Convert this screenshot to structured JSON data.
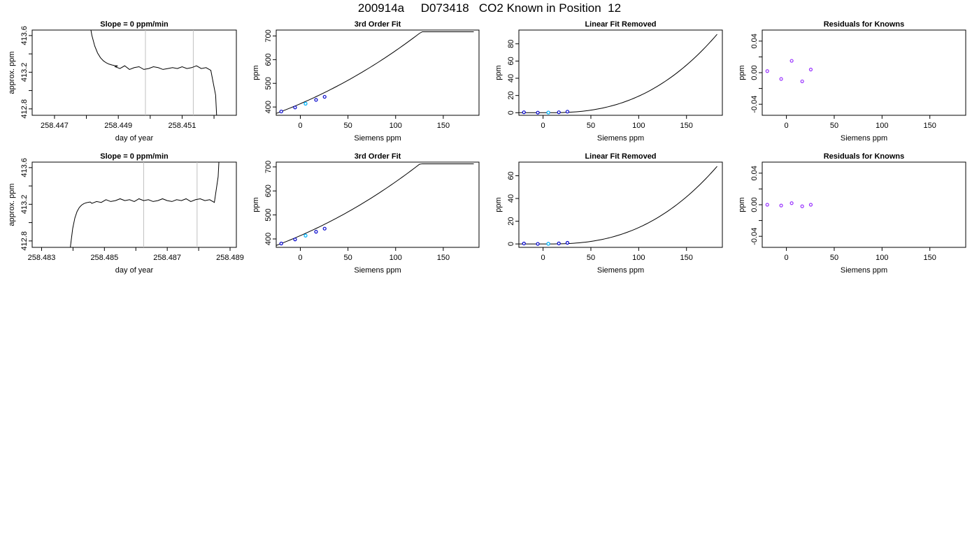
{
  "figure_title": "200914a     D073418   CO2 Known in Position  12",
  "colors": {
    "line": "#000000",
    "axis": "#000000",
    "marker": "#0000cc",
    "residual": "#9933ff",
    "highlight": "#00bfff",
    "marker_fill": "#ffffff",
    "vline": "#c0c0c0"
  },
  "chart_data": [
    {
      "type": "line",
      "title": "Slope =  0  ppm/min",
      "xlabel": "day of year",
      "ylabel": "approx. ppm",
      "xlim": [
        258.4463,
        258.4527
      ],
      "ylim": [
        412.73,
        413.66
      ],
      "x_ticks": [
        258.447,
        258.448,
        258.449,
        258.45,
        258.451,
        258.452
      ],
      "x_tick_labels": [
        "258.447",
        "",
        "258.449",
        "",
        "258.451",
        ""
      ],
      "y_ticks": [
        412.8,
        413.0,
        413.2,
        413.4,
        413.6
      ],
      "y_tick_labels": [
        "412.8",
        "",
        "413.2",
        "",
        "413.6"
      ],
      "vlines": [
        258.44985,
        258.45135
      ],
      "segments": [
        {
          "color": "#000000",
          "x": [
            258.4489,
            258.44905,
            258.4492,
            258.44935,
            258.4495,
            258.44965,
            258.4498,
            258.44995,
            258.4501,
            258.45025,
            258.4504,
            258.45055,
            258.4507,
            258.45085,
            258.451,
            258.45115,
            258.4513,
            258.45145,
            258.4516,
            258.45175
          ],
          "y": [
            413.26,
            413.24,
            413.27,
            413.23,
            413.25,
            413.26,
            413.23,
            413.24,
            413.26,
            413.25,
            413.23,
            413.24,
            413.25,
            413.24,
            413.26,
            413.24,
            413.25,
            413.27,
            413.24,
            413.25
          ]
        }
      ]
    },
    {
      "type": "line",
      "title": "3rd Order Fit",
      "xlabel": "Siemens ppm",
      "ylabel": "ppm",
      "xlim": [
        -25.3,
        187.5
      ],
      "ylim": [
        365,
        725
      ],
      "x_ticks": [
        0,
        50,
        100,
        150
      ],
      "x_tick_labels": [
        "0",
        "50",
        "100",
        "150"
      ],
      "y_ticks": [
        400,
        500,
        600,
        700
      ],
      "y_tick_labels": [
        "400",
        "500",
        "600",
        "700"
      ],
      "segments": [],
      "points": {
        "x": [
          -20,
          -5.5,
          5.5,
          16.5,
          25.5
        ],
        "y": [
          381,
          398,
          414,
          430,
          443
        ]
      },
      "highlight_point": {
        "x": 5.5,
        "y": 414
      }
    },
    {
      "type": "line",
      "title": "Linear Fit Removed",
      "xlabel": "Siemens ppm",
      "ylabel": "ppm",
      "xlim": [
        -25.3,
        187.5
      ],
      "ylim": [
        -3,
        96
      ],
      "x_ticks": [
        0,
        50,
        100,
        150
      ],
      "x_tick_labels": [
        "0",
        "50",
        "100",
        "150"
      ],
      "y_ticks": [
        0,
        20,
        40,
        60,
        80
      ],
      "y_tick_labels": [
        "0",
        "20",
        "40",
        "60",
        "80"
      ],
      "segments": [],
      "points": {
        "x": [
          -20,
          -5.5,
          5.5,
          16.5,
          25.5
        ],
        "y": [
          0.5,
          0.1,
          0.2,
          0.5,
          1.2
        ]
      },
      "highlight_point": {
        "x": 5.5,
        "y": 0.2
      }
    },
    {
      "type": "scatter",
      "title": "Residuals for Knowns",
      "xlabel": "Siemens ppm",
      "ylabel": "ppm",
      "xlim": [
        -25.3,
        187.5
      ],
      "ylim": [
        -0.054,
        0.054
      ],
      "x_ticks": [
        0,
        50,
        100,
        150
      ],
      "x_tick_labels": [
        "0",
        "50",
        "100",
        "150"
      ],
      "y_ticks": [
        -0.04,
        -0.02,
        0,
        0.02,
        0.04
      ],
      "y_tick_labels": [
        "-0.04",
        "",
        "0.00",
        "",
        "0.04"
      ],
      "points": {
        "x": [
          -20,
          -5.5,
          5.5,
          16.5,
          25.5
        ],
        "y": [
          0.002,
          -0.008,
          0.015,
          -0.011,
          0.004
        ]
      }
    },
    {
      "type": "line",
      "title": "Slope =  0  ppm/min",
      "xlabel": "day of year",
      "ylabel": "approx. ppm",
      "xlim": [
        258.4827,
        258.4892
      ],
      "ylim": [
        412.73,
        413.66
      ],
      "x_ticks": [
        258.483,
        258.484,
        258.485,
        258.486,
        258.487,
        258.488,
        258.489
      ],
      "x_tick_labels": [
        "258.483",
        "",
        "258.485",
        "",
        "258.487",
        "",
        "258.489"
      ],
      "y_ticks": [
        412.8,
        413.0,
        413.2,
        413.4,
        413.6
      ],
      "y_tick_labels": [
        "412.8",
        "",
        "413.2",
        "",
        "413.6"
      ],
      "vlines": [
        258.48625,
        258.48795
      ],
      "segments": [
        {
          "color": "#000000",
          "x": [
            258.4846,
            258.48475,
            258.4849,
            258.48505,
            258.4852,
            258.48535,
            258.4855,
            258.48565,
            258.4858,
            258.48595,
            258.4861,
            258.48625,
            258.4864,
            258.48655,
            258.4867,
            258.48685,
            258.487,
            258.48715,
            258.4873,
            258.48745,
            258.4876,
            258.48775,
            258.4879,
            258.48805,
            258.4882,
            258.48835
          ],
          "y": [
            413.21,
            413.23,
            413.22,
            413.25,
            413.23,
            413.24,
            413.26,
            413.24,
            413.25,
            413.23,
            413.26,
            413.24,
            413.25,
            413.23,
            413.24,
            413.26,
            413.24,
            413.23,
            413.25,
            413.24,
            413.26,
            413.23,
            413.25,
            413.26,
            413.24,
            413.25
          ]
        }
      ]
    },
    {
      "type": "line",
      "title": "3rd Order Fit",
      "xlabel": "Siemens ppm",
      "ylabel": "ppm",
      "xlim": [
        -25.3,
        187.5
      ],
      "ylim": [
        365,
        720
      ],
      "x_ticks": [
        0,
        50,
        100,
        150
      ],
      "x_tick_labels": [
        "0",
        "50",
        "100",
        "150"
      ],
      "y_ticks": [
        400,
        500,
        600,
        700
      ],
      "y_tick_labels": [
        "400",
        "500",
        "600",
        "700"
      ],
      "segments": [],
      "points": {
        "x": [
          -20,
          -5.5,
          5.5,
          16.5,
          25.5
        ],
        "y": [
          381,
          398,
          414,
          430,
          443
        ]
      },
      "highlight_point": {
        "x": 5.5,
        "y": 414
      }
    },
    {
      "type": "line",
      "title": "Linear Fit Removed",
      "xlabel": "Siemens ppm",
      "ylabel": "ppm",
      "xlim": [
        -25.3,
        187.5
      ],
      "ylim": [
        -3,
        72
      ],
      "x_ticks": [
        0,
        50,
        100,
        150
      ],
      "x_tick_labels": [
        "0",
        "50",
        "100",
        "150"
      ],
      "y_ticks": [
        0,
        20,
        40,
        60
      ],
      "y_tick_labels": [
        "0",
        "20",
        "40",
        "60"
      ],
      "segments": [],
      "points": {
        "x": [
          -20,
          -5.5,
          5.5,
          16.5,
          25.5
        ],
        "y": [
          0.4,
          0.05,
          0.15,
          0.45,
          1.0
        ]
      },
      "highlight_point": {
        "x": 5.5,
        "y": 0.15
      }
    },
    {
      "type": "scatter",
      "title": "Residuals for Knowns",
      "xlabel": "Siemens ppm",
      "ylabel": "ppm",
      "xlim": [
        -25.3,
        187.5
      ],
      "ylim": [
        -0.054,
        0.054
      ],
      "x_ticks": [
        0,
        50,
        100,
        150
      ],
      "x_tick_labels": [
        "0",
        "50",
        "100",
        "150"
      ],
      "y_ticks": [
        -0.04,
        -0.02,
        0,
        0.02,
        0.04
      ],
      "y_tick_labels": [
        "-0.04",
        "",
        "0.00",
        "",
        "0.04"
      ],
      "points": {
        "x": [
          -20,
          -5.5,
          5.5,
          16.5,
          25.5
        ],
        "y": [
          0.0,
          -0.001,
          0.002,
          -0.002,
          0.0
        ]
      }
    }
  ]
}
